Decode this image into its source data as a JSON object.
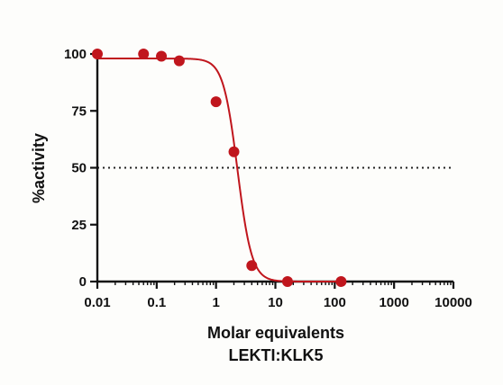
{
  "chart_data": {
    "type": "scatter",
    "title": "",
    "xlabel": "Molar equivalents",
    "xlabel2": "LEKTI:KLK5",
    "ylabel": "%activity",
    "x_scale": "log",
    "xlim": [
      0.01,
      10000
    ],
    "ylim": [
      0,
      100
    ],
    "x_ticks": [
      {
        "value": 0.01,
        "label": "0.01"
      },
      {
        "value": 0.1,
        "label": "0.1"
      },
      {
        "value": 1,
        "label": "1"
      },
      {
        "value": 10,
        "label": "10"
      },
      {
        "value": 100,
        "label": "100"
      },
      {
        "value": 1000,
        "label": "1000"
      },
      {
        "value": 10000,
        "label": "10000"
      }
    ],
    "y_ticks": [
      {
        "value": 0,
        "label": "0"
      },
      {
        "value": 25,
        "label": "25"
      },
      {
        "value": 50,
        "label": "50"
      },
      {
        "value": 75,
        "label": "75"
      },
      {
        "value": 100,
        "label": "100"
      }
    ],
    "grid": false,
    "reference_line": {
      "y": 50,
      "style": "dotted"
    },
    "series": [
      {
        "color": "#c0161d",
        "points": [
          {
            "x": 0.01,
            "y": 100
          },
          {
            "x": 0.06,
            "y": 100
          },
          {
            "x": 0.12,
            "y": 99
          },
          {
            "x": 0.24,
            "y": 97
          },
          {
            "x": 1.0,
            "y": 79
          },
          {
            "x": 2.0,
            "y": 57
          },
          {
            "x": 4.0,
            "y": 7
          },
          {
            "x": 16,
            "y": 0
          },
          {
            "x": 128,
            "y": 0
          }
        ],
        "fit": {
          "model": "four-parameter logistic",
          "top": 98,
          "bottom": 0,
          "ic50": 2.3,
          "hill": 3.6
        }
      }
    ]
  }
}
